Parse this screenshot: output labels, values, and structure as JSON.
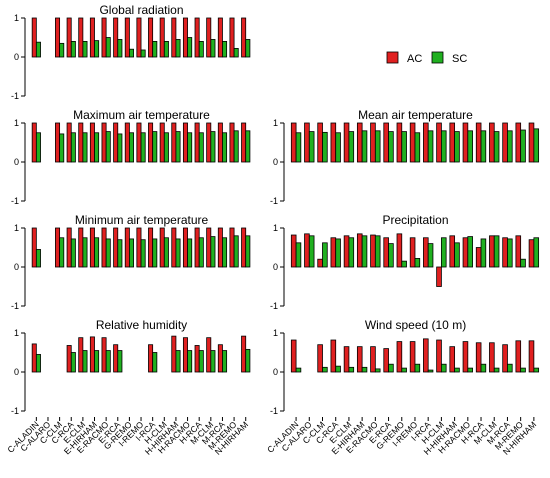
{
  "chart_data": {
    "type": "bar",
    "categories": [
      "C-ALADIN",
      "C-ALARO",
      "C-CLM",
      "C-RCA",
      "E-CLM",
      "E-HIRHAM",
      "E-RACMO",
      "E-RCA",
      "G-REMO",
      "I-REMO",
      "I-RCA",
      "H-CLM",
      "H-HIRHAM",
      "H-RACMO",
      "H-RCA",
      "M-CLM",
      "M-RCA",
      "M-REMO",
      "N-HIRHAM"
    ],
    "ylim": [
      -1,
      1
    ],
    "yticks": [
      -1,
      0,
      1
    ],
    "legend": {
      "position": "top-right",
      "entries": [
        "AC",
        "SC"
      ]
    },
    "colors": {
      "AC": "#e02020",
      "SC": "#20b020"
    },
    "panels": [
      {
        "title": "Global radiation",
        "series": [
          {
            "name": "AC",
            "values": [
              1.0,
              null,
              1.0,
              1.0,
              1.0,
              1.0,
              1.0,
              1.0,
              1.0,
              1.0,
              1.0,
              1.0,
              1.0,
              1.0,
              1.0,
              1.0,
              1.0,
              1.0,
              1.0
            ]
          },
          {
            "name": "SC",
            "values": [
              0.38,
              null,
              0.35,
              0.4,
              0.4,
              0.42,
              0.5,
              0.45,
              0.2,
              0.18,
              0.4,
              0.4,
              0.45,
              0.5,
              0.4,
              0.45,
              0.4,
              0.22,
              0.45
            ]
          }
        ]
      },
      {
        "title": "Mean air temperature",
        "series": [
          {
            "name": "AC",
            "values": [
              1.0,
              1.0,
              1.0,
              1.0,
              1.0,
              1.0,
              1.0,
              1.0,
              1.0,
              1.0,
              1.0,
              1.0,
              1.0,
              1.0,
              1.0,
              1.0,
              1.0,
              1.0,
              1.0
            ]
          },
          {
            "name": "SC",
            "values": [
              0.75,
              0.78,
              0.76,
              0.75,
              0.78,
              0.8,
              0.8,
              0.78,
              0.78,
              0.75,
              0.8,
              0.8,
              0.78,
              0.8,
              0.8,
              0.78,
              0.8,
              0.82,
              0.85
            ]
          }
        ]
      },
      {
        "title": "Maximum air temperature",
        "series": [
          {
            "name": "AC",
            "values": [
              1.0,
              null,
              1.0,
              1.0,
              1.0,
              1.0,
              1.0,
              1.0,
              1.0,
              1.0,
              1.0,
              1.0,
              1.0,
              1.0,
              1.0,
              1.0,
              1.0,
              1.0,
              1.0
            ]
          },
          {
            "name": "SC",
            "values": [
              0.75,
              null,
              0.72,
              0.75,
              0.75,
              0.75,
              0.78,
              0.72,
              0.75,
              0.75,
              0.78,
              0.75,
              0.78,
              0.75,
              0.75,
              0.78,
              0.75,
              0.8,
              0.8
            ]
          }
        ]
      },
      {
        "title": "Precipitation",
        "series": [
          {
            "name": "AC",
            "values": [
              0.82,
              0.85,
              0.2,
              0.75,
              0.8,
              0.85,
              0.82,
              0.75,
              0.85,
              0.75,
              0.75,
              -0.5,
              0.8,
              0.75,
              0.5,
              0.8,
              0.75,
              0.8,
              0.7
            ]
          },
          {
            "name": "SC",
            "values": [
              0.62,
              0.8,
              0.62,
              0.72,
              0.75,
              0.8,
              0.8,
              0.6,
              0.15,
              0.22,
              0.6,
              0.75,
              0.62,
              0.78,
              0.72,
              0.8,
              0.72,
              0.2,
              0.75
            ]
          }
        ]
      },
      {
        "title": "Minimum air temperature",
        "series": [
          {
            "name": "AC",
            "values": [
              1.0,
              null,
              1.0,
              1.0,
              1.0,
              1.0,
              1.0,
              1.0,
              1.0,
              1.0,
              1.0,
              1.0,
              1.0,
              1.0,
              1.0,
              1.0,
              1.0,
              1.0,
              1.0
            ]
          },
          {
            "name": "SC",
            "values": [
              0.45,
              null,
              0.75,
              0.72,
              0.75,
              0.75,
              0.72,
              0.7,
              0.72,
              0.7,
              0.72,
              0.75,
              0.72,
              0.72,
              0.75,
              0.78,
              0.75,
              0.8,
              0.8
            ]
          }
        ]
      },
      {
        "title": "Wind speed (10 m)",
        "series": [
          {
            "name": "AC",
            "values": [
              0.82,
              null,
              0.7,
              0.82,
              0.65,
              0.65,
              0.65,
              0.6,
              0.78,
              0.78,
              0.85,
              0.82,
              0.65,
              0.78,
              0.75,
              0.75,
              0.7,
              0.8,
              0.8
            ]
          },
          {
            "name": "SC",
            "values": [
              0.1,
              null,
              0.12,
              0.15,
              0.12,
              0.12,
              0.08,
              0.2,
              0.1,
              0.2,
              0.05,
              0.2,
              0.1,
              0.1,
              0.2,
              0.1,
              0.2,
              0.1,
              0.1
            ]
          }
        ]
      },
      {
        "title": "Relative humidity",
        "series": [
          {
            "name": "AC",
            "values": [
              0.72,
              null,
              null,
              0.68,
              0.88,
              0.9,
              0.88,
              0.7,
              null,
              null,
              0.7,
              null,
              0.92,
              0.88,
              0.68,
              0.88,
              0.7,
              null,
              0.92
            ]
          },
          {
            "name": "SC",
            "values": [
              0.45,
              null,
              null,
              0.5,
              0.55,
              0.55,
              0.55,
              0.55,
              null,
              null,
              0.5,
              null,
              0.55,
              0.55,
              0.55,
              0.55,
              0.55,
              null,
              0.58
            ]
          }
        ]
      }
    ]
  }
}
